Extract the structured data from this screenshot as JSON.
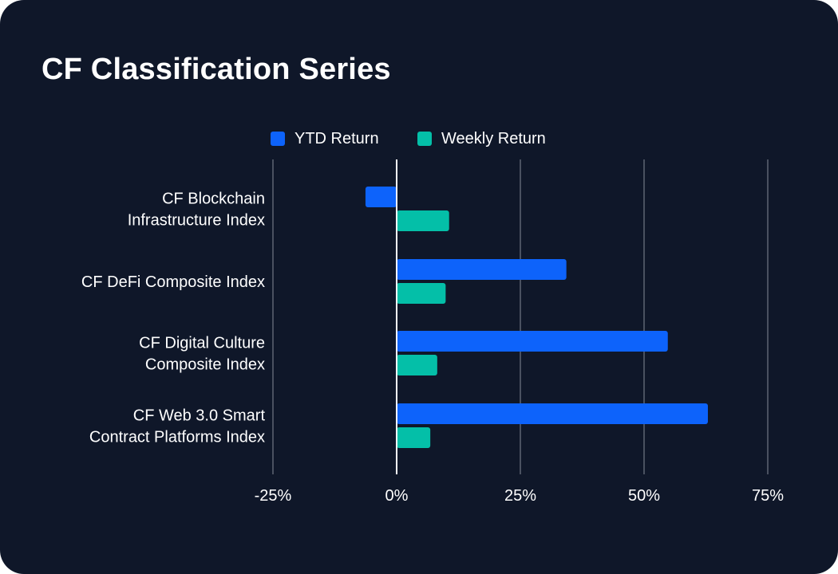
{
  "chart_data": {
    "type": "bar",
    "orientation": "horizontal",
    "title": "CF Classification Series",
    "categories": [
      [
        "CF Blockchain",
        "Infrastructure Index"
      ],
      [
        "CF DeFi Composite Index"
      ],
      [
        "CF Digital Culture",
        "Composite Index"
      ],
      [
        "CF Web 3.0 Smart",
        "Contract Platforms Index"
      ]
    ],
    "series": [
      {
        "name": "YTD Return",
        "color": "#0d63fb",
        "values": [
          -6.3,
          34.3,
          54.8,
          62.9
        ]
      },
      {
        "name": "Weekly Return",
        "color": "#04bfa8",
        "values": [
          10.6,
          9.9,
          8.2,
          6.8
        ]
      }
    ],
    "xlim": [
      -25,
      75
    ],
    "xticks": [
      -25,
      0,
      25,
      50,
      75
    ],
    "xtick_labels": [
      "-25%",
      "0%",
      "25%",
      "50%",
      "75%"
    ],
    "xlabel": "",
    "ylabel": "",
    "grid": true,
    "legend": "top-center"
  },
  "colors": {
    "background": "#0f1729",
    "grid": "#4a5160",
    "zero_line": "#ffffff",
    "text": "#ffffff"
  }
}
